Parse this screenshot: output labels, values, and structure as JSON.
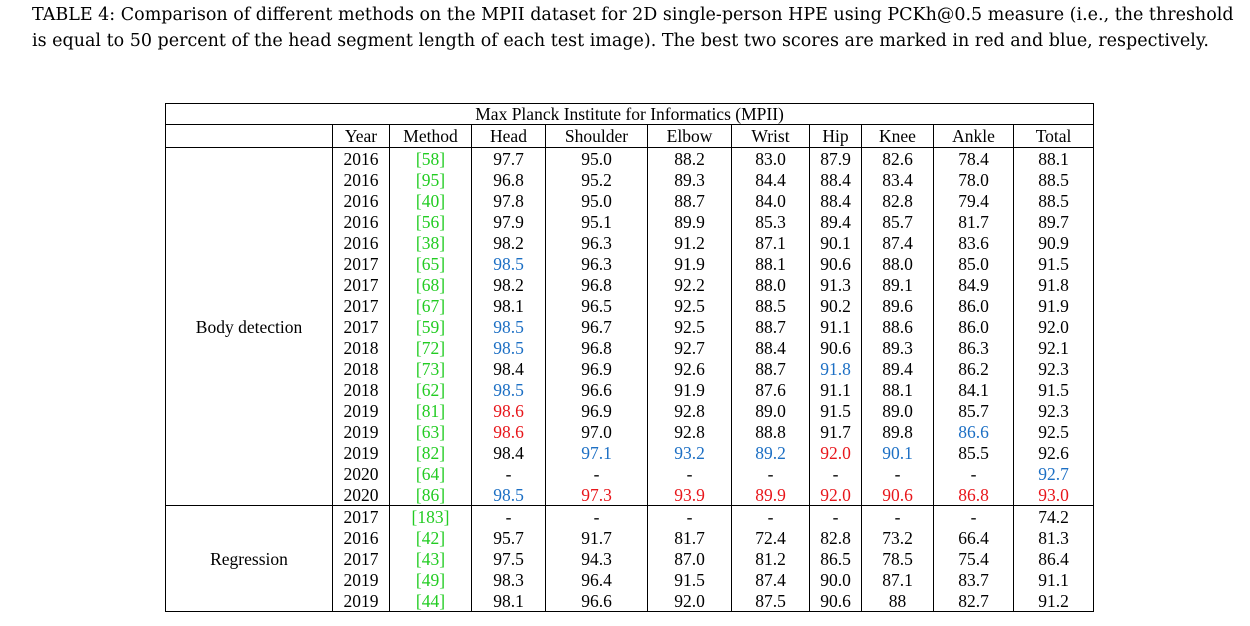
{
  "caption": "TABLE 4: Comparison of different methods on the MPII dataset for 2D single-person HPE using PCKh@0.5 measure (i.e., the threshold is equal to 50 percent of the head segment length of each test image). The best two scores are marked in red and blue, respectively.",
  "table": {
    "title": "Max Planck Institute for Informatics (MPII)",
    "headers": [
      "Year",
      "Method",
      "Head",
      "Shoulder",
      "Elbow",
      "Wrist",
      "Hip",
      "Knee",
      "Ankle",
      "Total"
    ],
    "colors": {
      "best": "#e8161b",
      "second": "#1c6fc4",
      "citation": "#22cc22"
    },
    "groups": [
      {
        "name": "Body detection",
        "rows": [
          {
            "year": "2016",
            "method": "[58]",
            "values": [
              "97.7",
              "95.0",
              "88.2",
              "83.0",
              "87.9",
              "82.6",
              "78.4",
              "88.1"
            ],
            "marks": [
              "",
              "",
              "",
              "",
              "",
              "",
              "",
              ""
            ]
          },
          {
            "year": "2016",
            "method": "[95]",
            "values": [
              "96.8",
              "95.2",
              "89.3",
              "84.4",
              "88.4",
              "83.4",
              "78.0",
              "88.5"
            ],
            "marks": [
              "",
              "",
              "",
              "",
              "",
              "",
              "",
              ""
            ]
          },
          {
            "year": "2016",
            "method": "[40]",
            "values": [
              "97.8",
              "95.0",
              "88.7",
              "84.0",
              "88.4",
              "82.8",
              "79.4",
              "88.5"
            ],
            "marks": [
              "",
              "",
              "",
              "",
              "",
              "",
              "",
              ""
            ]
          },
          {
            "year": "2016",
            "method": "[56]",
            "values": [
              "97.9",
              "95.1",
              "89.9",
              "85.3",
              "89.4",
              "85.7",
              "81.7",
              "89.7"
            ],
            "marks": [
              "",
              "",
              "",
              "",
              "",
              "",
              "",
              ""
            ]
          },
          {
            "year": "2016",
            "method": "[38]",
            "values": [
              "98.2",
              "96.3",
              "91.2",
              "87.1",
              "90.1",
              "87.4",
              "83.6",
              "90.9"
            ],
            "marks": [
              "",
              "",
              "",
              "",
              "",
              "",
              "",
              ""
            ]
          },
          {
            "year": "2017",
            "method": "[65]",
            "values": [
              "98.5",
              "96.3",
              "91.9",
              "88.1",
              "90.6",
              "88.0",
              "85.0",
              "91.5"
            ],
            "marks": [
              "blue",
              "",
              "",
              "",
              "",
              "",
              "",
              ""
            ]
          },
          {
            "year": "2017",
            "method": "[68]",
            "values": [
              "98.2",
              "96.8",
              "92.2",
              "88.0",
              "91.3",
              "89.1",
              "84.9",
              "91.8"
            ],
            "marks": [
              "",
              "",
              "",
              "",
              "",
              "",
              "",
              ""
            ]
          },
          {
            "year": "2017",
            "method": "[67]",
            "values": [
              "98.1",
              "96.5",
              "92.5",
              "88.5",
              "90.2",
              "89.6",
              "86.0",
              "91.9"
            ],
            "marks": [
              "",
              "",
              "",
              "",
              "",
              "",
              "",
              ""
            ]
          },
          {
            "year": "2017",
            "method": "[59]",
            "values": [
              "98.5",
              "96.7",
              "92.5",
              "88.7",
              "91.1",
              "88.6",
              "86.0",
              "92.0"
            ],
            "marks": [
              "blue",
              "",
              "",
              "",
              "",
              "",
              "",
              ""
            ]
          },
          {
            "year": "2018",
            "method": "[72]",
            "values": [
              "98.5",
              "96.8",
              "92.7",
              "88.4",
              "90.6",
              "89.3",
              "86.3",
              "92.1"
            ],
            "marks": [
              "blue",
              "",
              "",
              "",
              "",
              "",
              "",
              ""
            ]
          },
          {
            "year": "2018",
            "method": "[73]",
            "values": [
              "98.4",
              "96.9",
              "92.6",
              "88.7",
              "91.8",
              "89.4",
              "86.2",
              "92.3"
            ],
            "marks": [
              "",
              "",
              "",
              "",
              "blue",
              "",
              "",
              ""
            ]
          },
          {
            "year": "2018",
            "method": "[62]",
            "values": [
              "98.5",
              "96.6",
              "91.9",
              "87.6",
              "91.1",
              "88.1",
              "84.1",
              "91.5"
            ],
            "marks": [
              "blue",
              "",
              "",
              "",
              "",
              "",
              "",
              ""
            ]
          },
          {
            "year": "2019",
            "method": "[81]",
            "values": [
              "98.6",
              "96.9",
              "92.8",
              "89.0",
              "91.5",
              "89.0",
              "85.7",
              "92.3"
            ],
            "marks": [
              "red",
              "",
              "",
              "",
              "",
              "",
              "",
              ""
            ]
          },
          {
            "year": "2019",
            "method": "[63]",
            "values": [
              "98.6",
              "97.0",
              "92.8",
              "88.8",
              "91.7",
              "89.8",
              "86.6",
              "92.5"
            ],
            "marks": [
              "red",
              "",
              "",
              "",
              "",
              "",
              "blue",
              ""
            ]
          },
          {
            "year": "2019",
            "method": "[82]",
            "values": [
              "98.4",
              "97.1",
              "93.2",
              "89.2",
              "92.0",
              "90.1",
              "85.5",
              "92.6"
            ],
            "marks": [
              "",
              "blue",
              "blue",
              "blue",
              "red",
              "blue",
              "",
              ""
            ]
          },
          {
            "year": "2020",
            "method": "[64]",
            "values": [
              "-",
              "-",
              "-",
              "-",
              "-",
              "-",
              "-",
              "92.7"
            ],
            "marks": [
              "",
              "",
              "",
              "",
              "",
              "",
              "",
              "blue"
            ]
          },
          {
            "year": "2020",
            "method": "[86]",
            "values": [
              "98.5",
              "97.3",
              "93.9",
              "89.9",
              "92.0",
              "90.6",
              "86.8",
              "93.0"
            ],
            "marks": [
              "blue",
              "red",
              "red",
              "red",
              "red",
              "red",
              "red",
              "red"
            ]
          }
        ]
      },
      {
        "name": "Regression",
        "rows": [
          {
            "year": "2017",
            "method": "[183]",
            "values": [
              "-",
              "-",
              "-",
              "-",
              "-",
              "-",
              "-",
              "74.2"
            ],
            "marks": [
              "",
              "",
              "",
              "",
              "",
              "",
              "",
              ""
            ]
          },
          {
            "year": "2016",
            "method": "[42]",
            "values": [
              "95.7",
              "91.7",
              "81.7",
              "72.4",
              "82.8",
              "73.2",
              "66.4",
              "81.3"
            ],
            "marks": [
              "",
              "",
              "",
              "",
              "",
              "",
              "",
              ""
            ]
          },
          {
            "year": "2017",
            "method": "[43]",
            "values": [
              "97.5",
              "94.3",
              "87.0",
              "81.2",
              "86.5",
              "78.5",
              "75.4",
              "86.4"
            ],
            "marks": [
              "",
              "",
              "",
              "",
              "",
              "",
              "",
              ""
            ]
          },
          {
            "year": "2019",
            "method": "[49]",
            "values": [
              "98.3",
              "96.4",
              "91.5",
              "87.4",
              "90.0",
              "87.1",
              "83.7",
              "91.1"
            ],
            "marks": [
              "",
              "",
              "",
              "",
              "",
              "",
              "",
              ""
            ]
          },
          {
            "year": "2019",
            "method": "[44]",
            "values": [
              "98.1",
              "96.6",
              "92.0",
              "87.5",
              "90.6",
              "88",
              "82.7",
              "91.2"
            ],
            "marks": [
              "",
              "",
              "",
              "",
              "",
              "",
              "",
              ""
            ]
          }
        ]
      }
    ]
  }
}
